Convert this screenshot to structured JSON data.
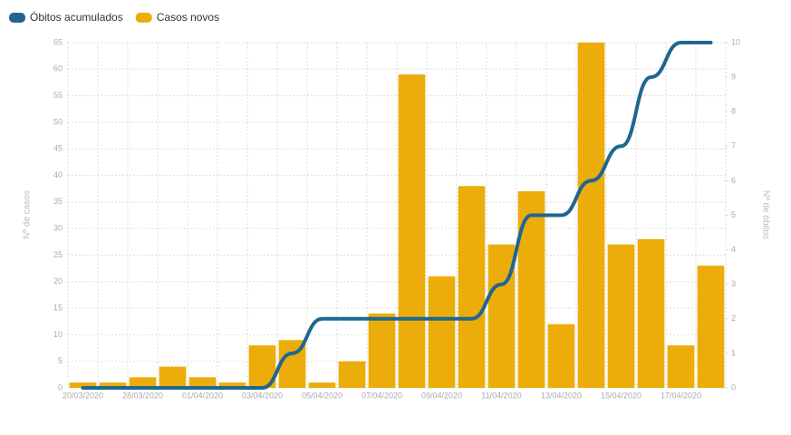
{
  "chart_data": {
    "type": "bar",
    "categories": [
      "20/03/2020",
      null,
      "28/03/2020",
      null,
      "01/04/2020",
      null,
      "03/04/2020",
      null,
      "05/04/2020",
      null,
      "07/04/2020",
      null,
      "09/04/2020",
      null,
      "11/04/2020",
      null,
      "13/04/2020",
      null,
      "15/04/2020",
      null,
      "17/04/2020",
      null
    ],
    "series": [
      {
        "name": "Óbitos acumulados",
        "type": "line",
        "axis": "y2",
        "color": "#1f6690",
        "values": [
          0,
          0,
          0,
          0,
          0,
          0,
          0,
          1,
          2,
          2,
          2,
          2,
          2,
          2,
          3,
          5,
          5,
          6,
          7,
          9,
          10,
          10
        ]
      },
      {
        "name": "Casos novos",
        "type": "bar",
        "color": "#ecad0a",
        "values": [
          1,
          1,
          2,
          4,
          2,
          1,
          8,
          9,
          1,
          5,
          14,
          59,
          21,
          38,
          27,
          37,
          12,
          65,
          27,
          28,
          8,
          23
        ]
      }
    ],
    "y_label": "Nº de casos",
    "y2_label": "Nº de óbitos",
    "ylim": [
      0,
      65
    ],
    "yticks": [
      0,
      5,
      10,
      15,
      20,
      25,
      30,
      35,
      40,
      45,
      50,
      55,
      60,
      65
    ],
    "y2lim": [
      0,
      10
    ],
    "y2ticks": [
      0,
      1,
      2,
      3,
      4,
      5,
      6,
      7,
      8,
      9,
      10
    ],
    "grid": true,
    "legend": "top-left"
  }
}
